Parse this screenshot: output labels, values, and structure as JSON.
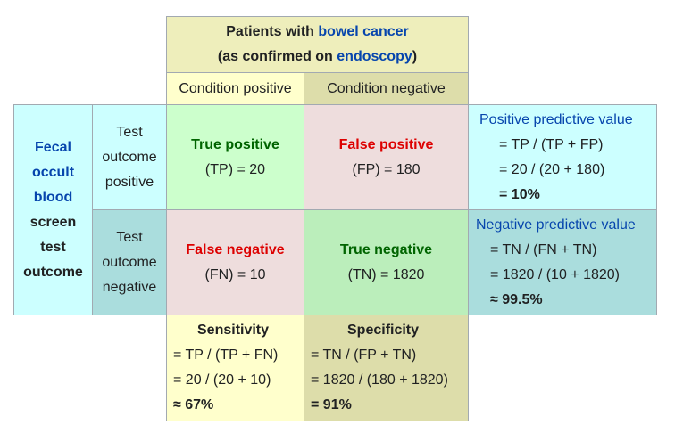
{
  "header": {
    "title_pre": "Patients with ",
    "title_link": "bowel cancer",
    "subtitle_pre": "(as confirmed on ",
    "subtitle_link": "endoscopy",
    "subtitle_post": ")",
    "cond_pos": "Condition positive",
    "cond_neg": "Condition negative"
  },
  "test": {
    "name_link1": "Fecal",
    "name_link2": "occult",
    "name_link3": "blood",
    "name_rest1": "screen",
    "name_rest2": "test",
    "name_rest3": "outcome",
    "pos_1": "Test",
    "pos_2": "outcome",
    "pos_3": "positive",
    "neg_1": "Test",
    "neg_2": "outcome",
    "neg_3": "negative"
  },
  "cells": {
    "tp_label": "True positive",
    "tp_value": "(TP) = 20",
    "fp_label": "False positive",
    "fp_value": "(FP) = 180",
    "fn_label": "False negative",
    "fn_value": "(FN) = 10",
    "tn_label": "True negative",
    "tn_value": "(TN) = 1820"
  },
  "ppv": {
    "title": "Positive predictive value",
    "l1": "= TP / (TP + FP)",
    "l2": "= 20 / (20 + 180)",
    "l3": "= 10%"
  },
  "npv": {
    "title": "Negative predictive value",
    "l1": "= TN / (FN + TN)",
    "l2": "= 1820 / (10 + 1820)",
    "l3": "≈ 99.5%"
  },
  "sens": {
    "title": "Sensitivity",
    "l1": "= TP / (TP + FN)",
    "l2": "= 20 / (20 + 10)",
    "l3": "≈ 67%"
  },
  "spec": {
    "title": "Specificity",
    "l1": "= TN / (FP + TN)",
    "l2": "= 1820 / (180 + 1820)",
    "l3": "= 91%"
  },
  "colors": {
    "header_yellow": "#eeeebb",
    "cond_pos_bg": "#ffffcc",
    "cond_neg_bg": "#ddddaa",
    "row_pos_bg": "#ccffff",
    "row_neg_bg": "#aadddd",
    "tp_bg": "#ccffcc",
    "fp_bg": "#eedddd",
    "fn_bg": "#eedddd",
    "tn_bg": "#bbeebb"
  }
}
